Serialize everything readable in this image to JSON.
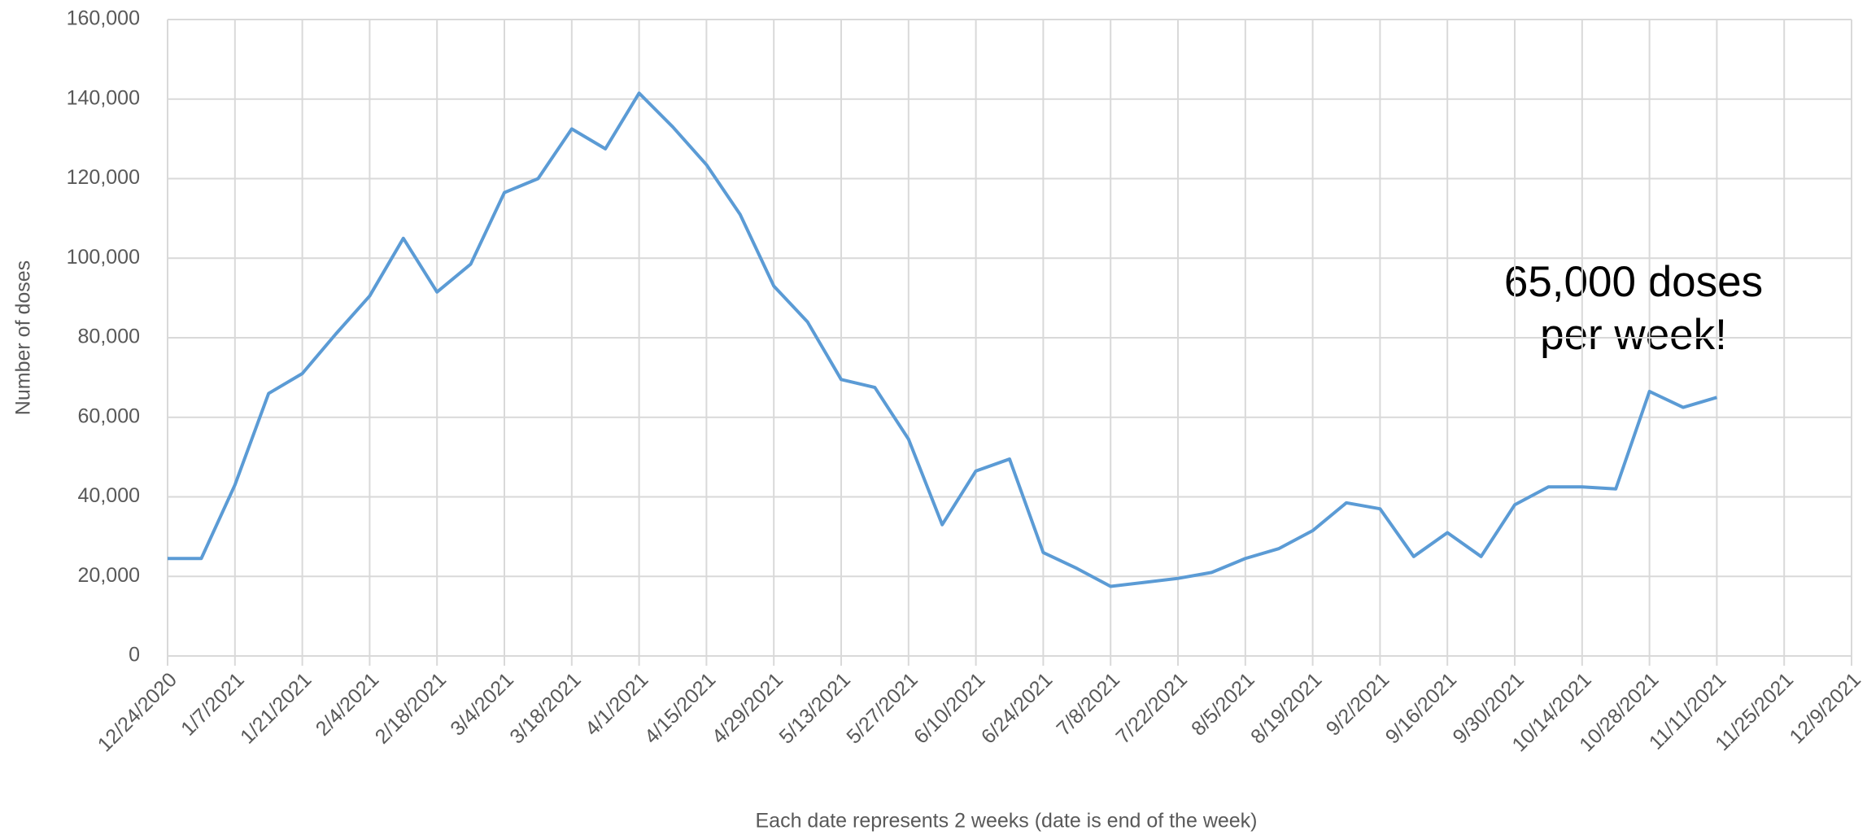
{
  "chart_data": {
    "type": "line",
    "x_label": "Each date represents 2 weeks (date is end of the week)",
    "y_label": "Number of doses",
    "categories": [
      "12/24/2020",
      null,
      "1/7/2021",
      null,
      "1/21/2021",
      null,
      "2/4/2021",
      null,
      "2/18/2021",
      null,
      "3/4/2021",
      null,
      "3/18/2021",
      null,
      "4/1/2021",
      null,
      "4/15/2021",
      null,
      "4/29/2021",
      null,
      "5/13/2021",
      null,
      "5/27/2021",
      null,
      "6/10/2021",
      null,
      "6/24/2021",
      null,
      "7/8/2021",
      null,
      "7/22/2021",
      null,
      "8/5/2021",
      null,
      "8/19/2021",
      null,
      "9/2/2021",
      null,
      "9/16/2021",
      null,
      "9/30/2021",
      null,
      "10/14/2021",
      null,
      "10/28/2021",
      null,
      "11/11/2021",
      null,
      "11/25/2021",
      null,
      "12/9/2021"
    ],
    "series": [
      {
        "color": "#5b9bd5",
        "values": [
          24500,
          24500,
          43000,
          66000,
          71000,
          81000,
          90500,
          105000,
          91500,
          98500,
          116500,
          120000,
          132500,
          127500,
          141500,
          133000,
          123500,
          111000,
          93000,
          84000,
          69500,
          67500,
          54500,
          33000,
          46500,
          49500,
          26000,
          22000,
          17500,
          18500,
          19500,
          21000,
          24500,
          27000,
          31500,
          38500,
          37000,
          25000,
          31000,
          25000,
          38000,
          42500,
          42500,
          42000,
          66500,
          62500,
          65000,
          null,
          null,
          null,
          null
        ]
      }
    ],
    "ylim": [
      0,
      160000
    ],
    "yticks": [
      0,
      {
        "value": 20000,
        "label": "20,000"
      },
      {
        "value": 40000,
        "label": "40,000"
      },
      {
        "value": 60000,
        "label": "60,000"
      },
      {
        "value": 80000,
        "label": "80,000"
      },
      {
        "value": 100000,
        "label": "100,000"
      },
      {
        "value": 120000,
        "label": "120,000"
      },
      {
        "value": 140000,
        "label": "140,000"
      },
      {
        "value": 160000,
        "label": "160,000"
      }
    ],
    "grid": true,
    "annotation": [
      "65,000 doses",
      "per week!"
    ]
  }
}
